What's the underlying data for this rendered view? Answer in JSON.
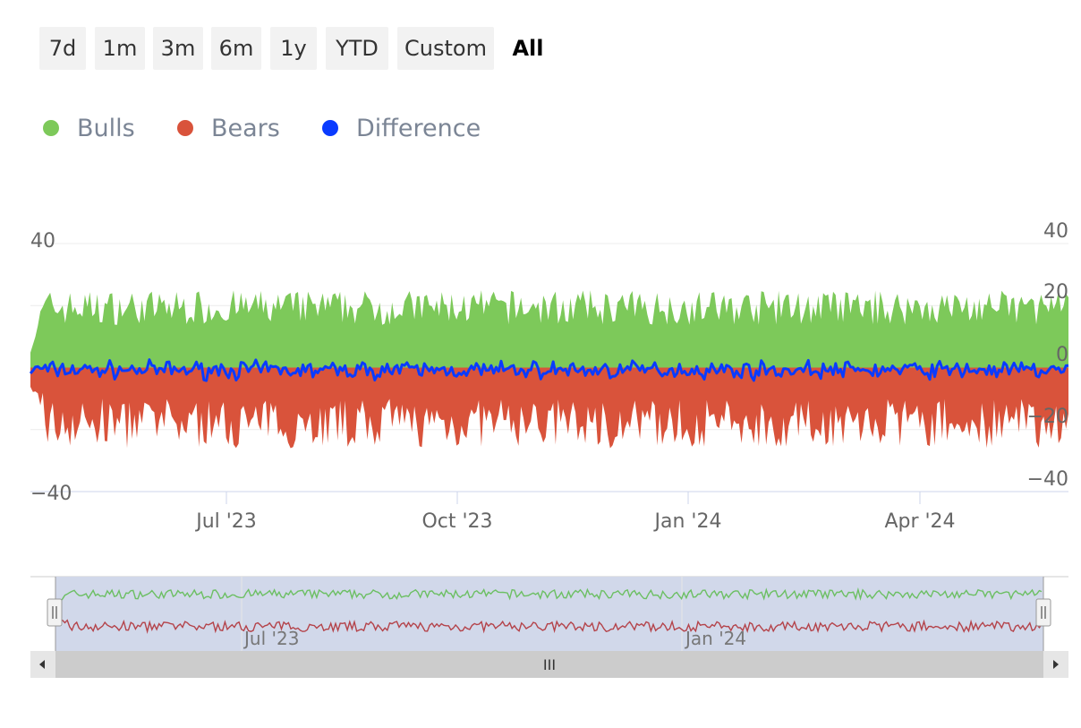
{
  "range_selector": {
    "buttons": [
      "7d",
      "1m",
      "3m",
      "6m",
      "1y",
      "YTD",
      "Custom"
    ],
    "active_label": "All"
  },
  "legend": [
    {
      "label": "Bulls",
      "color": "#7dc95a"
    },
    {
      "label": "Bears",
      "color": "#d9533b"
    },
    {
      "label": "Difference",
      "color": "#0a3bff"
    }
  ],
  "navigator": {
    "labels": [
      "Jul '23",
      "Jan '24"
    ],
    "scrollbar_grip": "III"
  },
  "chart_data": {
    "type": "area",
    "x_range": [
      "2023-04-01",
      "2024-05-31"
    ],
    "x_ticks": [
      "Jul '23",
      "Oct '23",
      "Jan '24",
      "Apr '24"
    ],
    "y_left": {
      "ticks": [
        "40",
        "−40"
      ],
      "range": [
        -40,
        40
      ]
    },
    "y_right": {
      "ticks": [
        "40",
        "20",
        "0",
        "−20",
        "−40"
      ],
      "range": [
        -40,
        40
      ]
    },
    "legend_position": "top-left",
    "series": [
      {
        "name": "Bulls",
        "color": "#7dc95a",
        "kind": "area",
        "typical_range": [
          10,
          25
        ]
      },
      {
        "name": "Bears",
        "color": "#d9533b",
        "kind": "area",
        "typical_range": [
          -30,
          -10
        ]
      },
      {
        "name": "Difference",
        "color": "#0a3bff",
        "kind": "line",
        "typical_range": [
          -13,
          5
        ]
      }
    ]
  }
}
